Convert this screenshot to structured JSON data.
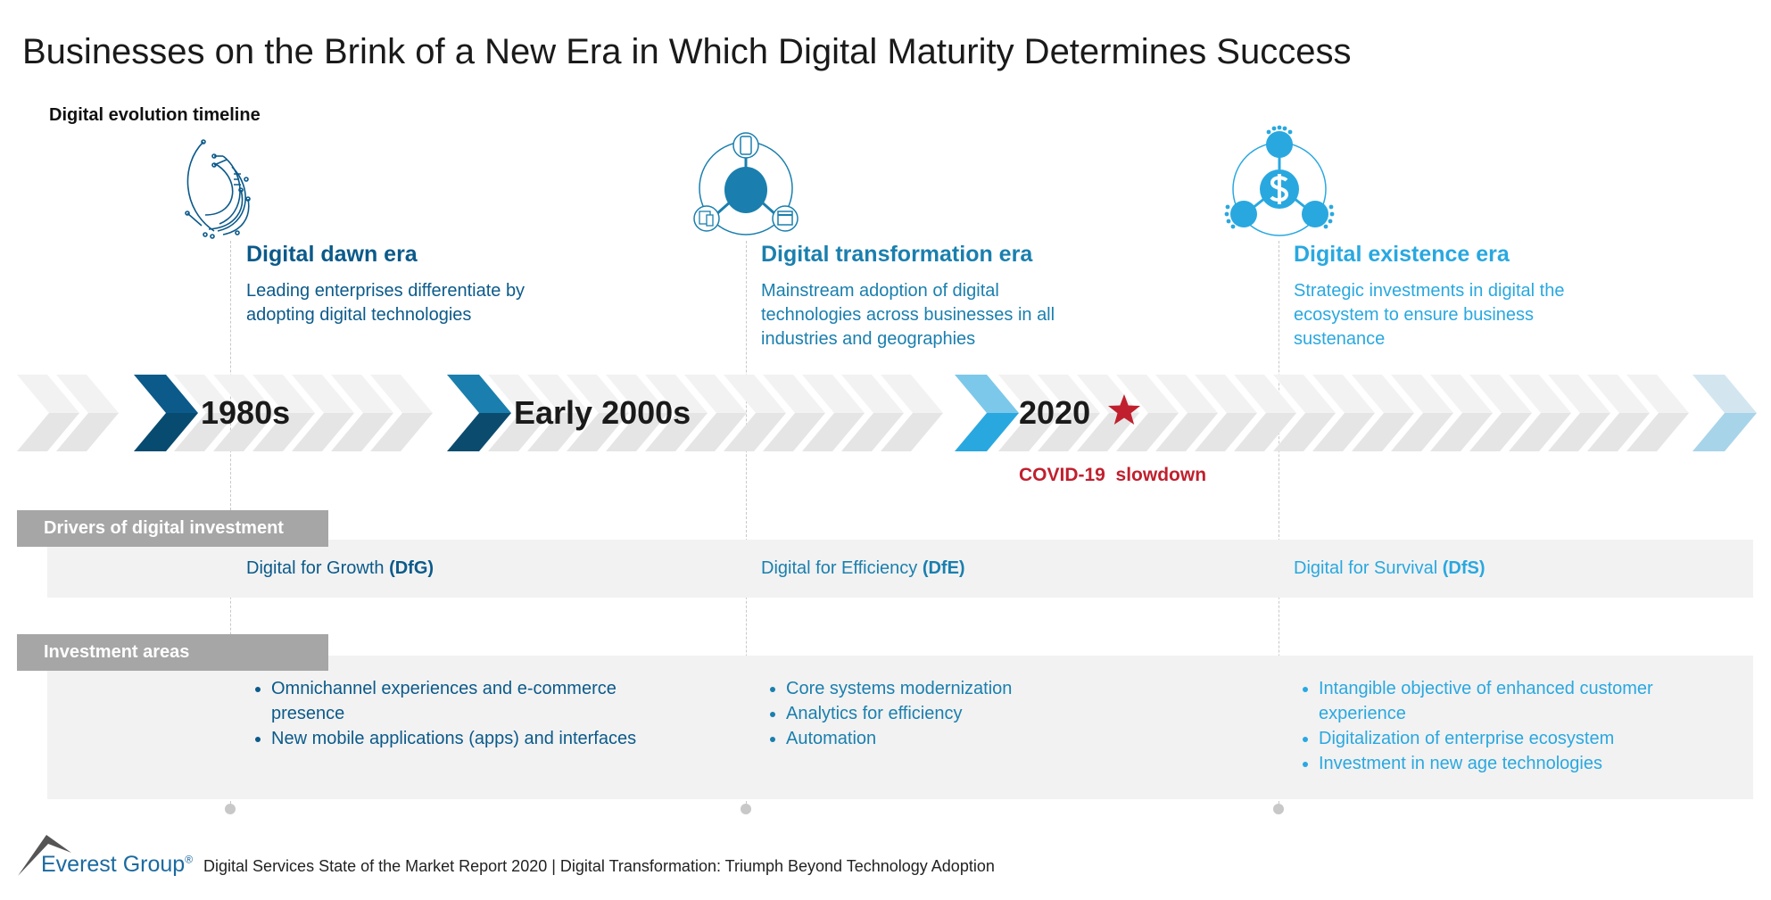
{
  "title": "Businesses on the Brink of a New Era in Which Digital Maturity Determines Success",
  "subtitle": "Digital evolution timeline",
  "colors": {
    "era1": "#0b5a8a",
    "era2": "#1a7fae",
    "era3": "#29a8e0",
    "covid": "#c0202e",
    "label_box": "#a6a6a6",
    "band": "#f2f2f2"
  },
  "eras": [
    {
      "icon": "circuit-arc-icon",
      "title": "Digital dawn era",
      "desc": "Leading enterprises differentiate by adopting digital technologies",
      "year": "1980s",
      "driver_prefix": "Digital for Growth ",
      "driver_abbr": "(DfG)",
      "areas": [
        "Omnichannel experiences and e-commerce presence",
        "New mobile applications (apps) and interfaces"
      ]
    },
    {
      "icon": "connected-devices-icon",
      "title": "Digital transformation era",
      "desc": "Mainstream adoption of digital technologies across businesses in all industries and geographies",
      "year": "Early 2000s",
      "driver_prefix": "Digital for Efficiency ",
      "driver_abbr": "(DfE)",
      "areas": [
        "Core systems modernization",
        "Analytics for efficiency",
        "Automation"
      ]
    },
    {
      "icon": "dollar-network-icon",
      "title": "Digital existence era",
      "desc": "Strategic investments in digital the ecosystem to ensure business sustenance",
      "year": "2020",
      "driver_prefix": "Digital for Survival ",
      "driver_abbr": "(DfS)",
      "areas": [
        "Intangible objective of enhanced customer experience",
        "Digitalization of enterprise ecosystem",
        "Investment in new age technologies"
      ]
    }
  ],
  "star_icon": "star-icon",
  "covid_label": "COVID-19  slowdown",
  "drivers_label": "Drivers of digital investment",
  "investment_label": "Investment areas",
  "footer": {
    "logo": "Everest Group",
    "logo_mark": "®",
    "text": "Digital Services State of the Market Report 2020 | Digital Transformation: Triumph Beyond Technology Adoption"
  }
}
